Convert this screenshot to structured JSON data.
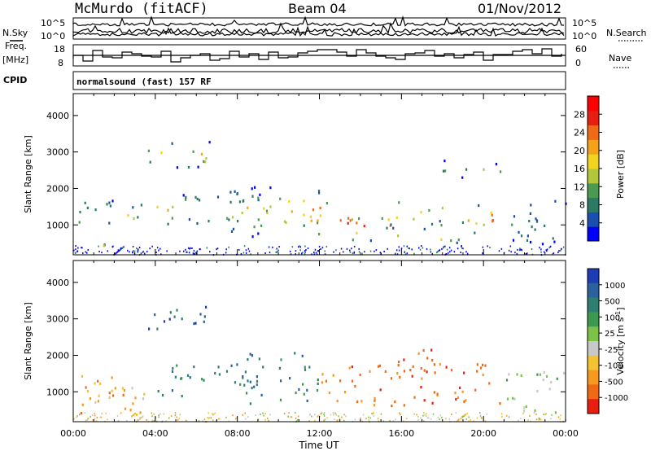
{
  "header": {
    "site": "McMurdo (fitACF)",
    "beam": "Beam 04",
    "date": "01/Nov/2012"
  },
  "left_labels": {
    "nsky": "N.Sky",
    "freq_line1": "Freq.",
    "freq_line2": "[MHz]",
    "cpid": "CPID"
  },
  "right_labels": {
    "nsearch": "N.Search",
    "nave": "Nave"
  },
  "cpid_text": "normalsound (fast) 157 RF",
  "noise_panel": {
    "left_ticks": [
      "10^5",
      "10^0"
    ],
    "right_ticks": [
      "10^5",
      "10^0"
    ]
  },
  "freq_panel": {
    "left_ticks": [
      "18",
      "8"
    ],
    "right_ticks": [
      "60",
      "0"
    ]
  },
  "chart_data": [
    {
      "type": "heatmap",
      "quantity": "Power",
      "xlabel": "",
      "ylabel": "Slant Range [km]",
      "ylim": [
        180,
        4600
      ],
      "yticks": [
        "1000",
        "2000",
        "3000",
        "4000"
      ],
      "colorbar": {
        "label": "Power [dB]",
        "ticks": [
          "4",
          "8",
          "12",
          "16",
          "20",
          "24",
          "28"
        ],
        "colors": [
          "#0000ff",
          "#1a4fb0",
          "#2b7a64",
          "#4a9a50",
          "#b2c83a",
          "#f2d41e",
          "#f5a21a",
          "#f06a18",
          "#e81e10",
          "#ff0000"
        ]
      },
      "blobs": [
        {
          "t": [
            0.2,
            2.2
          ],
          "r": [
            300,
            500
          ],
          "i": 0.95
        },
        {
          "t": [
            0.2,
            3.5
          ],
          "r": [
            900,
            1700
          ],
          "i": 0.45
        },
        {
          "t": [
            3.0,
            4.5
          ],
          "r": [
            350,
            520
          ],
          "i": 0.55
        },
        {
          "t": [
            3.5,
            6.5
          ],
          "r": [
            2600,
            3300
          ],
          "i": 0.55
        },
        {
          "t": [
            6.5,
            7.5
          ],
          "r": [
            3300,
            3550
          ],
          "i": 0.5
        },
        {
          "t": [
            4.0,
            9.5
          ],
          "r": [
            1000,
            1900
          ],
          "i": 0.55
        },
        {
          "t": [
            7.5,
            10.0
          ],
          "r": [
            700,
            2100
          ],
          "i": 0.5
        },
        {
          "t": [
            10.0,
            12.5
          ],
          "r": [
            900,
            2000
          ],
          "i": 0.7
        },
        {
          "t": [
            11.5,
            13.5
          ],
          "r": [
            700,
            1400
          ],
          "i": 0.95
        },
        {
          "t": [
            13.5,
            16.0
          ],
          "r": [
            600,
            1300
          ],
          "i": 1.0
        },
        {
          "t": [
            15.0,
            18.0
          ],
          "r": [
            900,
            1700
          ],
          "i": 0.65
        },
        {
          "t": [
            17.5,
            19.0
          ],
          "r": [
            500,
            1200
          ],
          "i": 0.8
        },
        {
          "t": [
            19.0,
            21.0
          ],
          "r": [
            800,
            1600
          ],
          "i": 0.85
        },
        {
          "t": [
            18.0,
            21.0
          ],
          "r": [
            2300,
            2800
          ],
          "i": 0.35
        },
        {
          "t": [
            21.0,
            24.0
          ],
          "r": [
            400,
            1700
          ],
          "i": 0.3
        }
      ]
    },
    {
      "type": "heatmap",
      "quantity": "Velocity",
      "xlabel": "Time UT",
      "ylabel": "Slant Range [km]",
      "ylim": [
        180,
        4600
      ],
      "yticks": [
        "1000",
        "2000",
        "3000",
        "4000"
      ],
      "xticks": [
        "00:00",
        "04:00",
        "08:00",
        "12:00",
        "16:00",
        "20:00",
        "00:00"
      ],
      "colorbar": {
        "label": "Velocity [m s^-1]",
        "ticks": [
          "1000",
          "500",
          "100",
          "25",
          "-25",
          "-100",
          "-500",
          "-1000"
        ],
        "colors": [
          "#1e3cb4",
          "#2a62a0",
          "#2f7f70",
          "#3c9a4e",
          "#7cc24a",
          "#c8c8c8",
          "#f5c232",
          "#f59a1e",
          "#f06a14",
          "#e81e10"
        ]
      },
      "blobs": [
        {
          "t": [
            0.2,
            3.5
          ],
          "r": [
            300,
            1500
          ],
          "v": -100
        },
        {
          "t": [
            1.0,
            3.5
          ],
          "r": [
            700,
            1300
          ],
          "v": -25
        },
        {
          "t": [
            3.5,
            6.5
          ],
          "r": [
            2500,
            3400
          ],
          "v": 500
        },
        {
          "t": [
            4.0,
            9.5
          ],
          "r": [
            900,
            1800
          ],
          "v": 100
        },
        {
          "t": [
            8.0,
            12.0
          ],
          "r": [
            700,
            2200
          ],
          "v": 100
        },
        {
          "t": [
            12.0,
            13.5
          ],
          "r": [
            700,
            1800
          ],
          "v": -100
        },
        {
          "t": [
            13.5,
            21.0
          ],
          "r": [
            600,
            1900
          ],
          "v": -500
        },
        {
          "t": [
            16.0,
            18.5
          ],
          "r": [
            1400,
            2200
          ],
          "v": -500
        },
        {
          "t": [
            21.0,
            24.0
          ],
          "r": [
            400,
            1700
          ],
          "v": 25
        }
      ]
    }
  ]
}
